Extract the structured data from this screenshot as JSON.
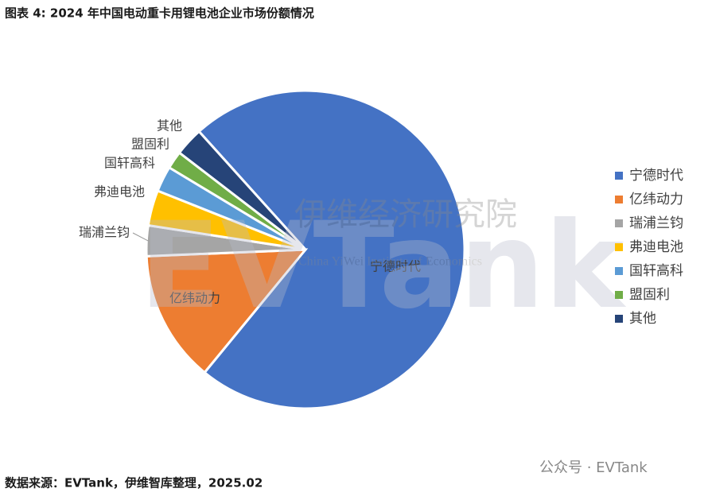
{
  "chart_data": {
    "type": "pie",
    "title": "图表 4: 2024 年中国电动重卡用锂电池企业市场份额情况",
    "categories": [
      "宁德时代",
      "亿纬动力",
      "瑞浦兰钧",
      "弗迪电池",
      "国轩高科",
      "盟固利",
      "其他"
    ],
    "values": [
      72.6,
      13.4,
      3.1,
      3.6,
      2.6,
      1.8,
      2.9
    ],
    "colors": [
      "#4472c4",
      "#ed7d31",
      "#a5a5a5",
      "#ffc000",
      "#5b9bd5",
      "#70ad47",
      "#264478"
    ],
    "legend": "right",
    "source": "数据来源：EVTank，伊维智库整理，2025.02",
    "watermark": {
      "brand": "EVTank",
      "cn": "伊维经济研究院",
      "en": "China YiWei Institute of Economics",
      "account": "公众号 · EVTank"
    }
  }
}
